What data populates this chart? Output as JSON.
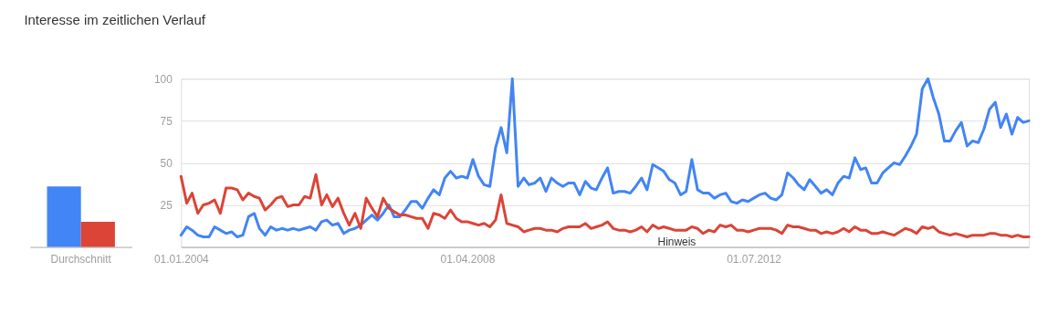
{
  "chart_data": [
    {
      "type": "bar",
      "title": "Interesse im zeitlichen Verlauf",
      "categories": [
        "Durchschnitt"
      ],
      "series": [
        {
          "color": "#4285f4",
          "values": [
            36
          ]
        },
        {
          "color": "#db4437",
          "values": [
            15
          ]
        }
      ],
      "ylim": [
        0,
        100
      ],
      "tick_labels": "x",
      "grid": false,
      "legend": false
    },
    {
      "type": "line",
      "x": [
        "2004-01",
        "2004-02",
        "2004-03",
        "2004-04",
        "2004-05",
        "2004-06",
        "2004-07",
        "2004-08",
        "2004-09",
        "2004-10",
        "2004-11",
        "2004-12",
        "2005-01",
        "2005-02",
        "2005-03",
        "2005-04",
        "2005-05",
        "2005-06",
        "2005-07",
        "2005-08",
        "2005-09",
        "2005-10",
        "2005-11",
        "2005-12",
        "2006-01",
        "2006-02",
        "2006-03",
        "2006-04",
        "2006-05",
        "2006-06",
        "2006-07",
        "2006-08",
        "2006-09",
        "2006-10",
        "2006-11",
        "2006-12",
        "2007-01",
        "2007-02",
        "2007-03",
        "2007-04",
        "2007-05",
        "2007-06",
        "2007-07",
        "2007-08",
        "2007-09",
        "2007-10",
        "2007-11",
        "2007-12",
        "2008-01",
        "2008-02",
        "2008-03",
        "2008-04",
        "2008-05",
        "2008-06",
        "2008-07",
        "2008-08",
        "2008-09",
        "2008-10",
        "2008-11",
        "2008-12",
        "2009-01",
        "2009-02",
        "2009-03",
        "2009-04",
        "2009-05",
        "2009-06",
        "2009-07",
        "2009-08",
        "2009-09",
        "2009-10",
        "2009-11",
        "2009-12",
        "2010-01",
        "2010-02",
        "2010-03",
        "2010-04",
        "2010-05",
        "2010-06",
        "2010-07",
        "2010-08",
        "2010-09",
        "2010-10",
        "2010-11",
        "2010-12",
        "2011-01",
        "2011-02",
        "2011-03",
        "2011-04",
        "2011-05",
        "2011-06",
        "2011-07",
        "2011-08",
        "2011-09",
        "2011-10",
        "2011-11",
        "2011-12",
        "2012-01",
        "2012-02",
        "2012-03",
        "2012-04",
        "2012-05",
        "2012-06",
        "2012-07",
        "2012-08",
        "2012-09",
        "2012-10",
        "2012-11",
        "2012-12",
        "2013-01",
        "2013-02",
        "2013-03",
        "2013-04",
        "2013-05",
        "2013-06",
        "2013-07",
        "2013-08",
        "2013-09",
        "2013-10",
        "2013-11",
        "2013-12",
        "2014-01",
        "2014-02",
        "2014-03",
        "2014-04",
        "2014-05",
        "2014-06",
        "2014-07",
        "2014-08",
        "2014-09",
        "2014-10",
        "2014-11",
        "2014-12",
        "2015-01",
        "2015-02",
        "2015-03",
        "2015-04",
        "2015-05",
        "2015-06",
        "2015-07",
        "2015-08",
        "2015-09",
        "2015-10",
        "2015-11",
        "2015-12",
        "2016-01",
        "2016-02",
        "2016-03",
        "2016-04",
        "2016-05",
        "2016-06",
        "2016-07",
        "2016-08"
      ],
      "series": [
        {
          "color": "#4285f4",
          "values": [
            7,
            12,
            10,
            7,
            6,
            6,
            12,
            10,
            8,
            9,
            6,
            7,
            18,
            20,
            11,
            7,
            12,
            10,
            11,
            10,
            11,
            10,
            11,
            12,
            10,
            15,
            16,
            13,
            14,
            8,
            10,
            11,
            13,
            16,
            19,
            16,
            20,
            25,
            18,
            18,
            22,
            27,
            27,
            23,
            29,
            34,
            31,
            41,
            45,
            41,
            42,
            41,
            52,
            42,
            37,
            36,
            59,
            71,
            56,
            100,
            36,
            41,
            37,
            38,
            41,
            33,
            41,
            38,
            36,
            38,
            38,
            31,
            39,
            35,
            34,
            41,
            47,
            32,
            33,
            33,
            32,
            36,
            41,
            34,
            49,
            47,
            45,
            40,
            38,
            31,
            33,
            52,
            34,
            32,
            32,
            29,
            31,
            32,
            27,
            26,
            28,
            27,
            29,
            31,
            32,
            29,
            28,
            31,
            44,
            41,
            37,
            34,
            40,
            36,
            32,
            34,
            31,
            38,
            42,
            41,
            53,
            46,
            47,
            38,
            38,
            44,
            47,
            50,
            49,
            54,
            60,
            67,
            94,
            100,
            89,
            79,
            63,
            63,
            69,
            74,
            60,
            63,
            62,
            70,
            82,
            86,
            71,
            79,
            67,
            77,
            74,
            75
          ]
        },
        {
          "color": "#db4437",
          "values": [
            42,
            26,
            32,
            20,
            25,
            26,
            28,
            20,
            35,
            35,
            34,
            28,
            32,
            30,
            29,
            22,
            25,
            29,
            30,
            24,
            25,
            25,
            30,
            29,
            43,
            25,
            31,
            24,
            29,
            20,
            13,
            20,
            11,
            29,
            23,
            18,
            29,
            23,
            21,
            19,
            19,
            18,
            17,
            17,
            11,
            20,
            19,
            17,
            22,
            17,
            15,
            15,
            14,
            13,
            14,
            12,
            16,
            31,
            14,
            13,
            12,
            9,
            10,
            11,
            11,
            10,
            10,
            9,
            11,
            12,
            12,
            12,
            14,
            11,
            12,
            13,
            15,
            11,
            10,
            10,
            9,
            10,
            12,
            9,
            13,
            11,
            12,
            11,
            10,
            10,
            10,
            12,
            11,
            8,
            10,
            9,
            13,
            12,
            13,
            10,
            10,
            9,
            10,
            11,
            11,
            11,
            10,
            8,
            13,
            12,
            12,
            11,
            10,
            10,
            8,
            9,
            8,
            9,
            11,
            9,
            12,
            10,
            10,
            8,
            8,
            9,
            8,
            7,
            9,
            11,
            10,
            8,
            12,
            11,
            12,
            9,
            8,
            7,
            8,
            7,
            6,
            7,
            7,
            7,
            8,
            8,
            7,
            7,
            6,
            7,
            6,
            6
          ]
        }
      ],
      "xlim": [
        "2004-01",
        "2016-08"
      ],
      "xticks": [
        {
          "value": "2004-01-01",
          "label": "01.01.2004"
        },
        {
          "value": "2008-04-01",
          "label": "01.04.2008"
        },
        {
          "value": "2012-07-01",
          "label": "01.07.2012"
        }
      ],
      "ylim": [
        0,
        100
      ],
      "yticks": [
        25,
        50,
        75,
        100
      ],
      "grid": "y",
      "legend": false,
      "marker": "none",
      "line_style": "solid",
      "annotations": [
        "Hinweis"
      ]
    }
  ]
}
